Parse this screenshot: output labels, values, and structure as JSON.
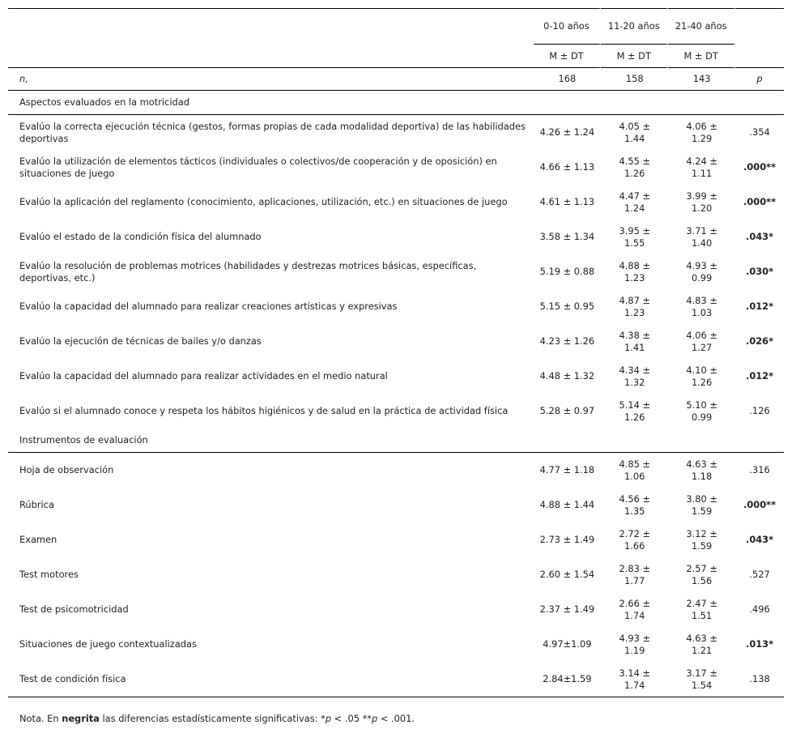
{
  "header": {
    "groups": [
      "0-10 años",
      "11-20 años",
      "21-40 años"
    ],
    "stat": "M ± DT",
    "n_label": "n,",
    "n_values": [
      "168",
      "158",
      "143"
    ],
    "p_label": "p"
  },
  "sections": [
    {
      "title": "Aspectos evaluados en la motricidad",
      "rows": [
        {
          "label": "Evalúo la correcta ejecución técnica (gestos, formas propias de cada modalidad deportiva) de las habilidades deportivas",
          "v": [
            "4.26 ± 1.24",
            "4.05 ± 1.44",
            "4.06 ± 1.29"
          ],
          "p": ".354",
          "sig": false
        },
        {
          "label": "Evalúo la utilización de elementos tácticos (individuales o colectivos/de cooperación y de oposición) en situaciones de juego",
          "v": [
            "4.66 ± 1.13",
            "4.55 ± 1.26",
            "4.24 ± 1.11"
          ],
          "p": ".000**",
          "sig": true
        },
        {
          "label": "Evalúo la aplicación del reglamento (conocimiento, aplicaciones, utilización, etc.) en situaciones de juego",
          "v": [
            "4.61 ± 1.13",
            "4.47 ± 1.24",
            "3.99 ± 1.20"
          ],
          "p": ".000**",
          "sig": true
        },
        {
          "label": "Evalúo el estado de la condición física del alumnado",
          "v": [
            "3.58 ± 1.34",
            "3.95 ± 1.55",
            "3.71 ± 1.40"
          ],
          "p": ".043*",
          "sig": true
        },
        {
          "label": "Evalúo la resolución de problemas motrices (habilidades y destrezas motrices básicas, específicas, deportivas, etc.)",
          "v": [
            "5.19 ± 0.88",
            "4.88 ± 1.23",
            "4.93 ± 0.99"
          ],
          "p": ".030*",
          "sig": true
        },
        {
          "label": "Evalúo la capacidad del alumnado para realizar creaciones artísticas y expresivas",
          "v": [
            "5.15 ± 0.95",
            "4.87 ± 1.23",
            "4.83 ± 1.03"
          ],
          "p": ".012*",
          "sig": true
        },
        {
          "label": "Evalúo la ejecución de técnicas de bailes y/o danzas",
          "v": [
            "4.23 ± 1.26",
            "4.38 ± 1.41",
            "4.06 ± 1.27"
          ],
          "p": ".026*",
          "sig": true
        },
        {
          "label": "Evalúo la capacidad del alumnado para realizar actividades en el medio natural",
          "v": [
            "4.48 ± 1.32",
            "4.34 ± 1.32",
            "4.10 ± 1.26"
          ],
          "p": ".012*",
          "sig": true
        },
        {
          "label": "Evalúo si el alumnado conoce y respeta los hábitos higiénicos y de salud en la práctica de actividad física",
          "v": [
            "5.28 ± 0.97",
            "5.14 ± 1.26",
            "5.10 ± 0.99"
          ],
          "p": ".126",
          "sig": false
        }
      ]
    },
    {
      "title": "Instrumentos de evaluación",
      "rows": [
        {
          "label": "Hoja de observación",
          "v": [
            "4.77 ± 1.18",
            "4.85 ± 1.06",
            "4.63 ± 1.18"
          ],
          "p": ".316",
          "sig": false
        },
        {
          "label": "Rúbrica",
          "v": [
            "4.88 ± 1.44",
            "4.56 ± 1.35",
            "3.80 ± 1.59"
          ],
          "p": ".000**",
          "sig": true
        },
        {
          "label": "Examen",
          "v": [
            "2.73 ± 1.49",
            "2.72 ± 1.66",
            "3.12 ± 1.59"
          ],
          "p": ".043*",
          "sig": true
        },
        {
          "label": "Test motores",
          "v": [
            "2.60 ± 1.54",
            "2.83 ± 1.77",
            "2.57 ± 1.56"
          ],
          "p": ".527",
          "sig": false
        },
        {
          "label": "Test de psicomotricidad",
          "v": [
            "2.37 ± 1.49",
            "2.66 ± 1.74",
            "2.47 ± 1.51"
          ],
          "p": ".496",
          "sig": false
        },
        {
          "label": "Situaciones de juego contextualizadas",
          "v": [
            "4.97±1.09",
            "4.93 ± 1.19",
            "4.63 ± 1.21"
          ],
          "p": ".013*",
          "sig": true
        },
        {
          "label": "Test de condición física",
          "v": [
            "2.84±1.59",
            "3.14 ± 1.74",
            "3.17 ± 1.54"
          ],
          "p": ".138",
          "sig": false
        }
      ]
    }
  ],
  "note": {
    "prefix": "Nota. En ",
    "bold": "negrita",
    "rest": " las diferencias estadísticamente significativas: *",
    "p1": "p",
    "mid": " < .05 **",
    "p2": "p",
    "end": " < .001."
  }
}
